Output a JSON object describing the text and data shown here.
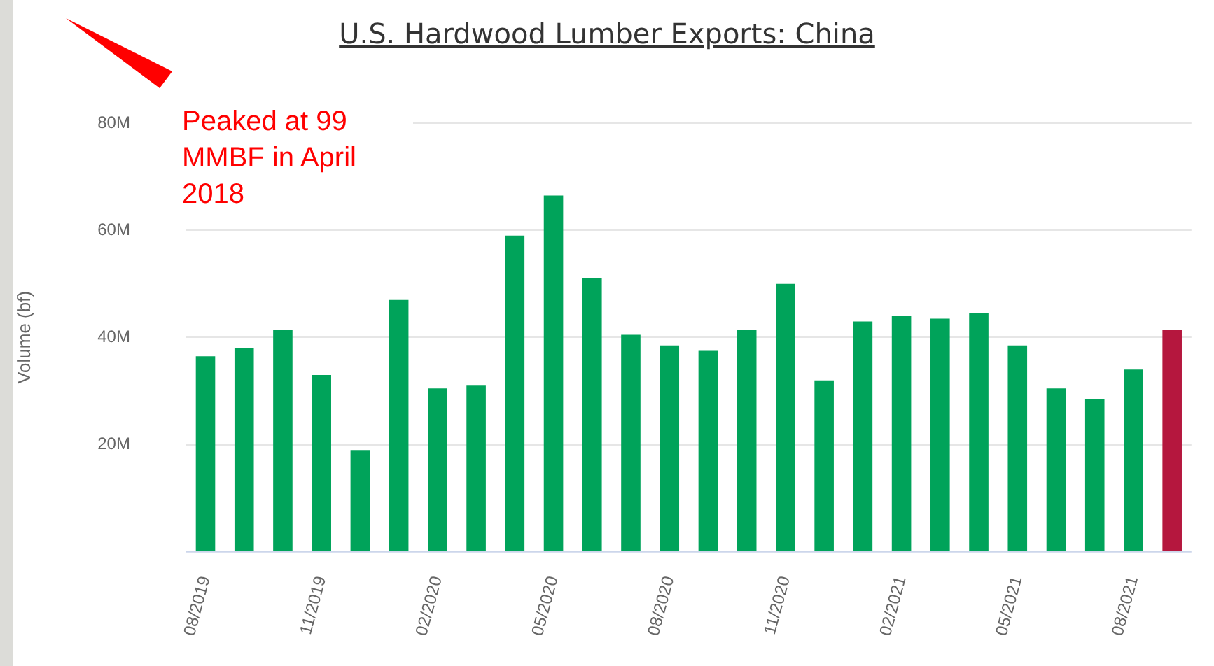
{
  "chart_data": {
    "type": "bar",
    "title": "U.S. Hardwood Lumber Exports: China",
    "ylabel": "Volume (bf)",
    "annotations": [
      "Peaked at 99 MMBF in April 2018"
    ],
    "categories": [
      "08/2019",
      null,
      null,
      "11/2019",
      null,
      null,
      "02/2020",
      null,
      null,
      "05/2020",
      null,
      null,
      "08/2020",
      null,
      null,
      "11/2020",
      null,
      null,
      "02/2021",
      null,
      null,
      "05/2021",
      null,
      null,
      "08/2021",
      null
    ],
    "values": [
      36.5,
      38,
      41.5,
      33,
      19,
      47,
      30.5,
      31,
      59,
      66.5,
      51,
      40.5,
      38.5,
      37.5,
      41.5,
      50,
      32,
      43,
      44,
      43.5,
      44.5,
      38.5,
      30.5,
      28.5,
      34,
      41.5
    ],
    "colors": [
      "#00a35a",
      "#00a35a",
      "#00a35a",
      "#00a35a",
      "#00a35a",
      "#00a35a",
      "#00a35a",
      "#00a35a",
      "#00a35a",
      "#00a35a",
      "#00a35a",
      "#00a35a",
      "#00a35a",
      "#00a35a",
      "#00a35a",
      "#00a35a",
      "#00a35a",
      "#00a35a",
      "#00a35a",
      "#00a35a",
      "#00a35a",
      "#00a35a",
      "#00a35a",
      "#00a35a",
      "#00a35a",
      "#b5173e"
    ],
    "ylim": [
      0,
      80
    ],
    "yticks": [
      {
        "value": 20,
        "label": "20M"
      },
      {
        "value": 40,
        "label": "40M"
      },
      {
        "value": 60,
        "label": "60M"
      },
      {
        "value": 80,
        "label": "80M"
      }
    ],
    "grid": "y",
    "legend": false
  }
}
